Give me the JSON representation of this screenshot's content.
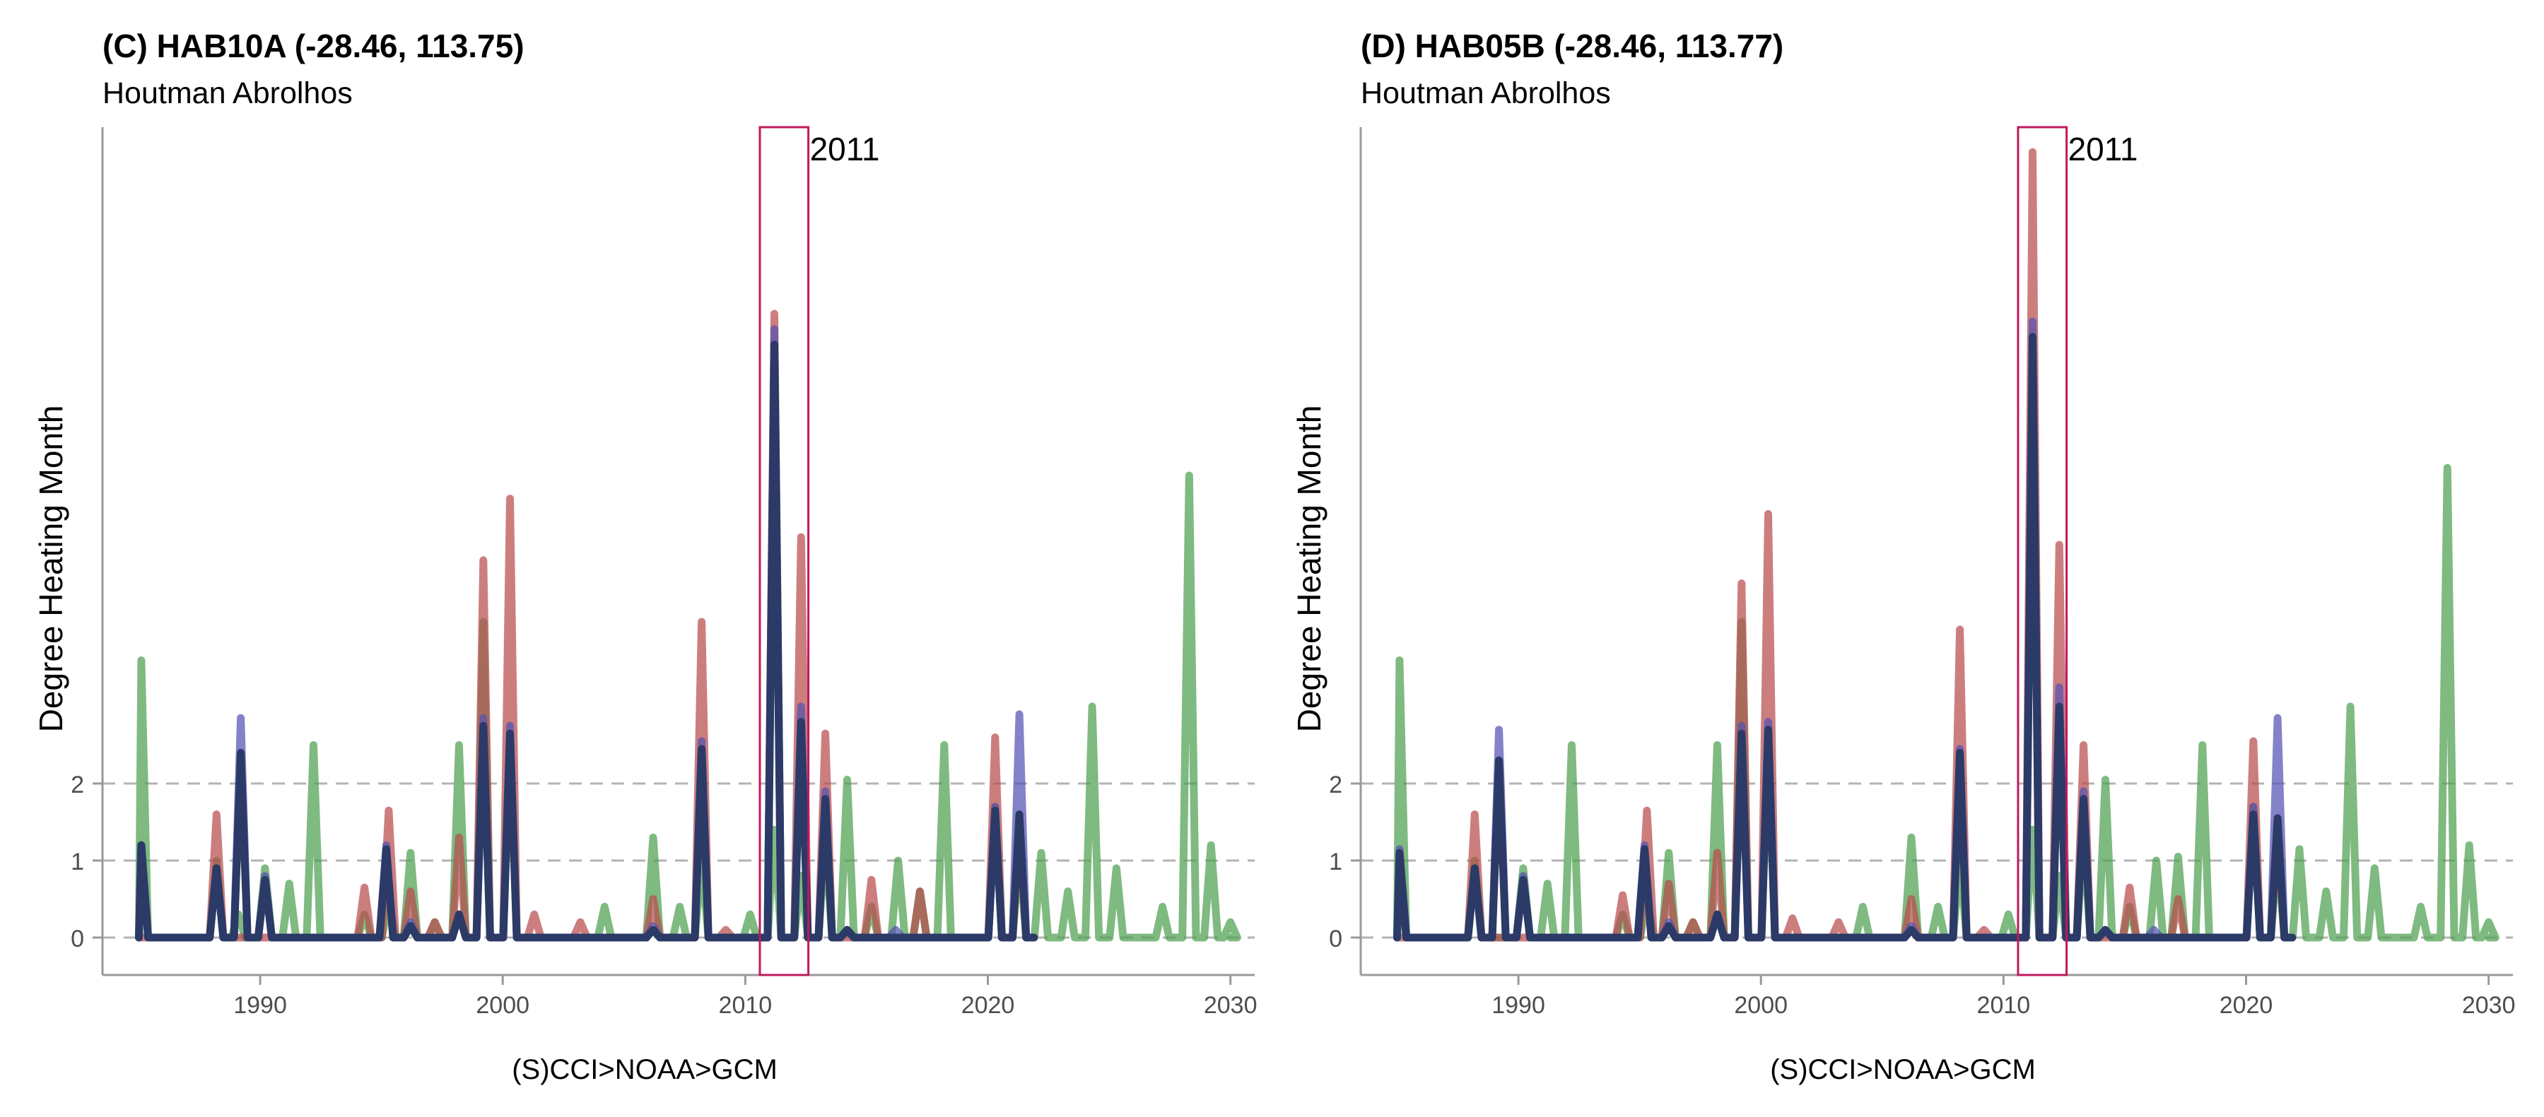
{
  "chart_data": [
    {
      "type": "line",
      "title": "(C) HAB10A (-28.46, 113.75)",
      "subtitle": "Houtman Abrolhos",
      "xlabel": "(S)CCI>NOAA>GCM",
      "ylabel": "Degree Heating Month",
      "xlim": [
        1983.5,
        2031
      ],
      "ylim": [
        -0.5,
        21
      ],
      "xticks": [
        1990,
        2000,
        2010,
        2020,
        2030
      ],
      "yticks": [
        0,
        1,
        2
      ],
      "grid_y": [
        0,
        1,
        2
      ],
      "grid_style": "dashed",
      "legend": "none",
      "highlight": {
        "x0": 2010.6,
        "x1": 2012.6,
        "label": "2011",
        "color": "#C2185B"
      },
      "series": [
        {
          "color": "#4E9F50",
          "peaks": [
            [
              1985.1,
              3.6
            ],
            [
              1988.2,
              1.0
            ],
            [
              1989.1,
              0.3
            ],
            [
              1990.2,
              0.9
            ],
            [
              1991.2,
              0.7
            ],
            [
              1992.2,
              2.5
            ],
            [
              1994.3,
              0.3
            ],
            [
              1995.3,
              0.5
            ],
            [
              1996.2,
              1.1
            ],
            [
              1997.2,
              0.2
            ],
            [
              1998.2,
              2.5
            ],
            [
              1999.2,
              4.1
            ],
            [
              2000.3,
              2.5
            ],
            [
              2004.2,
              0.4
            ],
            [
              2006.2,
              1.3
            ],
            [
              2007.3,
              0.4
            ],
            [
              2008.2,
              1.0
            ],
            [
              2010.2,
              0.3
            ],
            [
              2011.2,
              1.4
            ],
            [
              2012.3,
              0.8
            ],
            [
              2013.3,
              1.3
            ],
            [
              2014.2,
              2.05
            ],
            [
              2015.2,
              0.4
            ],
            [
              2016.3,
              1.0
            ],
            [
              2017.2,
              0.6
            ],
            [
              2018.2,
              2.5
            ],
            [
              2020.3,
              1.7
            ],
            [
              2021.3,
              1.1
            ],
            [
              2022.2,
              1.1
            ],
            [
              2023.3,
              0.6
            ],
            [
              2024.3,
              3.0
            ],
            [
              2025.3,
              0.9
            ],
            [
              2027.2,
              0.4
            ],
            [
              2028.3,
              6.0
            ],
            [
              2029.2,
              1.2
            ],
            [
              2030.0,
              0.2
            ]
          ]
        },
        {
          "color": "#B84C4C",
          "peaks": [
            [
              1988.2,
              1.6
            ],
            [
              1994.3,
              0.65
            ],
            [
              1995.3,
              1.65
            ],
            [
              1996.2,
              0.6
            ],
            [
              1997.2,
              0.2
            ],
            [
              1998.2,
              1.3
            ],
            [
              1999.2,
              4.9
            ],
            [
              2000.3,
              5.7
            ],
            [
              2001.3,
              0.3
            ],
            [
              2003.2,
              0.2
            ],
            [
              2006.2,
              0.5
            ],
            [
              2008.2,
              4.1
            ],
            [
              2009.2,
              0.1
            ],
            [
              2011.2,
              8.1
            ],
            [
              2012.3,
              5.2
            ],
            [
              2013.3,
              2.65
            ],
            [
              2015.2,
              0.75
            ],
            [
              2017.2,
              0.6
            ],
            [
              2020.3,
              2.6
            ],
            [
              2021.3,
              1.4
            ]
          ]
        },
        {
          "color": "#5552B3",
          "peaks": [
            [
              1985.1,
              1.2
            ],
            [
              1988.2,
              0.9
            ],
            [
              1989.2,
              2.85
            ],
            [
              1990.2,
              0.8
            ],
            [
              1995.2,
              1.2
            ],
            [
              1996.2,
              0.2
            ],
            [
              1998.2,
              0.3
            ],
            [
              1999.2,
              2.85
            ],
            [
              2000.3,
              2.75
            ],
            [
              2006.2,
              0.15
            ],
            [
              2008.2,
              2.55
            ],
            [
              2011.2,
              7.9
            ],
            [
              2012.3,
              3.0
            ],
            [
              2013.3,
              1.9
            ],
            [
              2014.2,
              0.1
            ],
            [
              2016.2,
              0.1
            ],
            [
              2020.3,
              1.7
            ],
            [
              2021.3,
              2.9
            ]
          ]
        },
        {
          "color": "#2B3A67",
          "peaks": [
            [
              1985.1,
              1.2
            ],
            [
              1988.2,
              0.9
            ],
            [
              1989.2,
              2.4
            ],
            [
              1990.2,
              0.75
            ],
            [
              1995.2,
              1.15
            ],
            [
              1996.2,
              0.15
            ],
            [
              1998.2,
              0.3
            ],
            [
              1999.2,
              2.75
            ],
            [
              2000.3,
              2.65
            ],
            [
              2006.2,
              0.1
            ],
            [
              2008.2,
              2.45
            ],
            [
              2011.2,
              7.7
            ],
            [
              2012.3,
              2.8
            ],
            [
              2013.3,
              1.8
            ],
            [
              2014.2,
              0.1
            ],
            [
              2020.3,
              1.65
            ],
            [
              2021.3,
              1.6
            ]
          ]
        }
      ]
    },
    {
      "type": "line",
      "title": "(D) HAB05B (-28.46, 113.77)",
      "subtitle": "Houtman Abrolhos",
      "xlabel": "(S)CCI>NOAA>GCM",
      "ylabel": "Degree Heating Month",
      "xlim": [
        1983.5,
        2031
      ],
      "ylim": [
        -0.5,
        21
      ],
      "xticks": [
        1990,
        2000,
        2010,
        2020,
        2030
      ],
      "yticks": [
        0,
        1,
        2
      ],
      "grid_y": [
        0,
        1,
        2
      ],
      "grid_style": "dashed",
      "legend": "none",
      "highlight": {
        "x0": 2010.6,
        "x1": 2012.6,
        "label": "2011",
        "color": "#C2185B"
      },
      "series": [
        {
          "color": "#4E9F50",
          "peaks": [
            [
              1985.1,
              3.6
            ],
            [
              1988.2,
              1.0
            ],
            [
              1990.2,
              0.9
            ],
            [
              1991.2,
              0.7
            ],
            [
              1992.2,
              2.5
            ],
            [
              1994.3,
              0.3
            ],
            [
              1995.3,
              0.5
            ],
            [
              1996.2,
              1.1
            ],
            [
              1997.2,
              0.2
            ],
            [
              1998.2,
              2.5
            ],
            [
              1999.2,
              4.1
            ],
            [
              2000.3,
              2.5
            ],
            [
              2004.2,
              0.4
            ],
            [
              2006.2,
              1.3
            ],
            [
              2007.3,
              0.4
            ],
            [
              2008.2,
              1.0
            ],
            [
              2010.2,
              0.3
            ],
            [
              2011.2,
              1.4
            ],
            [
              2012.3,
              0.8
            ],
            [
              2013.3,
              1.3
            ],
            [
              2014.2,
              2.05
            ],
            [
              2015.2,
              0.4
            ],
            [
              2016.3,
              1.0
            ],
            [
              2017.2,
              1.05
            ],
            [
              2018.2,
              2.5
            ],
            [
              2020.3,
              1.7
            ],
            [
              2021.3,
              1.1
            ],
            [
              2022.2,
              1.15
            ],
            [
              2023.3,
              0.6
            ],
            [
              2024.3,
              3.0
            ],
            [
              2025.3,
              0.9
            ],
            [
              2027.2,
              0.4
            ],
            [
              2028.3,
              6.1
            ],
            [
              2029.2,
              1.2
            ],
            [
              2030.0,
              0.2
            ]
          ]
        },
        {
          "color": "#B84C4C",
          "peaks": [
            [
              1988.2,
              1.6
            ],
            [
              1994.3,
              0.55
            ],
            [
              1995.3,
              1.65
            ],
            [
              1996.2,
              0.7
            ],
            [
              1997.2,
              0.2
            ],
            [
              1998.2,
              1.1
            ],
            [
              1999.2,
              4.6
            ],
            [
              2000.3,
              5.5
            ],
            [
              2001.3,
              0.25
            ],
            [
              2003.2,
              0.2
            ],
            [
              2006.2,
              0.5
            ],
            [
              2008.2,
              4.0
            ],
            [
              2009.2,
              0.1
            ],
            [
              2011.2,
              10.2
            ],
            [
              2012.3,
              5.1
            ],
            [
              2013.3,
              2.5
            ],
            [
              2015.2,
              0.65
            ],
            [
              2017.2,
              0.5
            ],
            [
              2020.3,
              2.55
            ],
            [
              2021.3,
              1.4
            ]
          ]
        },
        {
          "color": "#5552B3",
          "peaks": [
            [
              1985.1,
              1.15
            ],
            [
              1988.2,
              0.9
            ],
            [
              1989.2,
              2.7
            ],
            [
              1990.2,
              0.8
            ],
            [
              1995.2,
              1.2
            ],
            [
              1996.2,
              0.2
            ],
            [
              1998.2,
              0.3
            ],
            [
              1999.2,
              2.75
            ],
            [
              2000.3,
              2.8
            ],
            [
              2006.2,
              0.15
            ],
            [
              2008.2,
              2.45
            ],
            [
              2011.2,
              8.0
            ],
            [
              2012.3,
              3.25
            ],
            [
              2013.3,
              1.9
            ],
            [
              2014.2,
              0.1
            ],
            [
              2016.2,
              0.1
            ],
            [
              2020.3,
              1.7
            ],
            [
              2021.3,
              2.85
            ]
          ]
        },
        {
          "color": "#2B3A67",
          "peaks": [
            [
              1985.1,
              1.1
            ],
            [
              1988.2,
              0.9
            ],
            [
              1989.2,
              2.3
            ],
            [
              1990.2,
              0.75
            ],
            [
              1995.2,
              1.15
            ],
            [
              1996.2,
              0.15
            ],
            [
              1998.2,
              0.3
            ],
            [
              1999.2,
              2.65
            ],
            [
              2000.3,
              2.7
            ],
            [
              2006.2,
              0.1
            ],
            [
              2008.2,
              2.4
            ],
            [
              2011.2,
              7.8
            ],
            [
              2012.3,
              3.0
            ],
            [
              2013.3,
              1.8
            ],
            [
              2014.2,
              0.1
            ],
            [
              2020.3,
              1.6
            ],
            [
              2021.3,
              1.55
            ]
          ]
        }
      ]
    }
  ]
}
